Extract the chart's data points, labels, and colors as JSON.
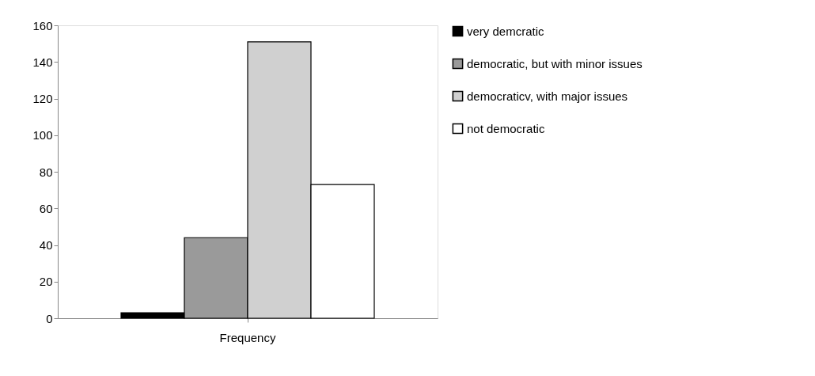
{
  "chart_data": {
    "type": "bar",
    "categories": [
      "Frequency"
    ],
    "series": [
      {
        "name": "very demcratic",
        "color": "#000000",
        "values": [
          3
        ]
      },
      {
        "name": "democratic, but with minor issues",
        "color": "#9a9a9a",
        "values": [
          44
        ]
      },
      {
        "name": "democraticv, with major issues",
        "color": "#d0d0d0",
        "values": [
          151
        ]
      },
      {
        "name": "not democratic",
        "color": "#ffffff",
        "values": [
          73
        ]
      }
    ],
    "ylim": [
      0,
      160
    ],
    "yticks": [
      0,
      20,
      40,
      60,
      80,
      100,
      120,
      140,
      160
    ],
    "grid": false,
    "legend": "right"
  }
}
